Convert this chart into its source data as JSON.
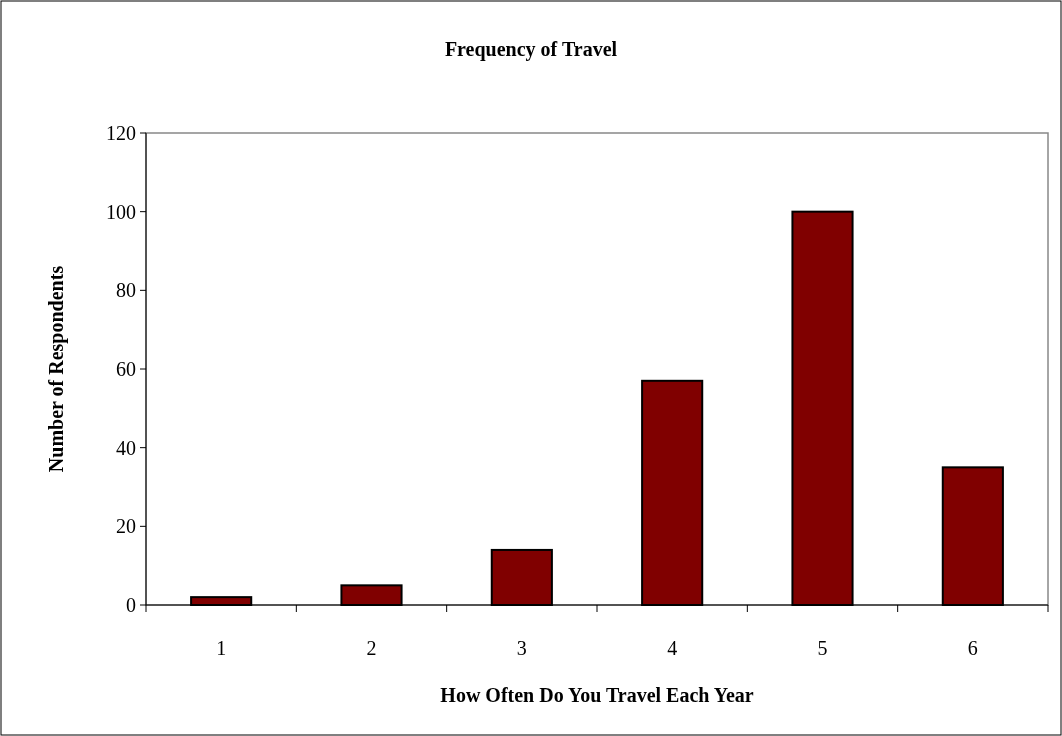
{
  "chart_data": {
    "type": "bar",
    "title": "Frequency of Travel",
    "xlabel": "How Often Do You Travel Each Year",
    "ylabel": "Number of Respondents",
    "categories": [
      "1",
      "2",
      "3",
      "4",
      "5",
      "6"
    ],
    "values": [
      2,
      5,
      14,
      57,
      100,
      35
    ],
    "color": "#800000",
    "ylim": [
      0,
      120
    ],
    "yticks": [
      0,
      20,
      40,
      60,
      80,
      100,
      120
    ],
    "grid": false
  }
}
